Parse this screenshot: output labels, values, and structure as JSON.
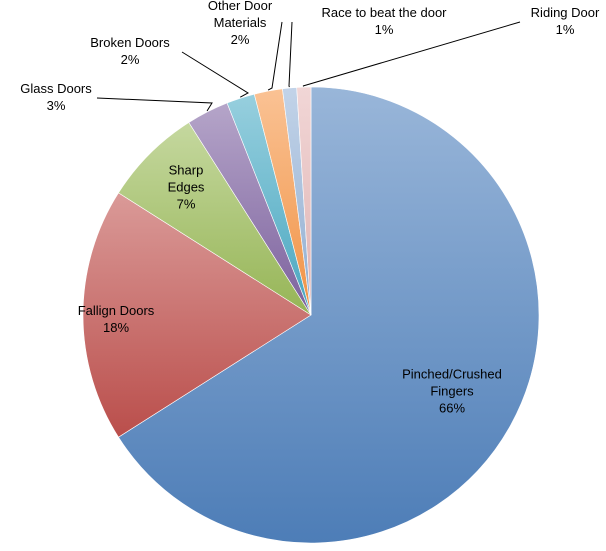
{
  "chart_data": {
    "type": "pie",
    "title": "",
    "start_angle": 0,
    "direction": "clockwise",
    "slices": [
      {
        "label": "Pinched/Crushed Fingers",
        "label_lines": [
          "Pinched/Crushed",
          "Fingers"
        ],
        "value": 66,
        "value_label": "66%",
        "color": "#4f81bd",
        "label_mode": "inside"
      },
      {
        "label": "Fallign Doors",
        "label_lines": [
          "Fallign Doors"
        ],
        "value": 18,
        "value_label": "18%",
        "color": "#c0504d",
        "label_mode": "inside"
      },
      {
        "label": "Sharp Edges",
        "label_lines": [
          "Sharp",
          "Edges"
        ],
        "value": 7,
        "value_label": "7%",
        "color": "#9bbb59",
        "label_mode": "inside"
      },
      {
        "label": "Glass Doors",
        "label_lines": [
          "Glass Doors"
        ],
        "value": 3,
        "value_label": "3%",
        "color": "#8064a2",
        "label_mode": "callout"
      },
      {
        "label": "Broken Doors",
        "label_lines": [
          "Broken Doors"
        ],
        "value": 2,
        "value_label": "2%",
        "color": "#4bacc6",
        "label_mode": "callout"
      },
      {
        "label": "Other Door Materials",
        "label_lines": [
          "Other Door",
          "Materials"
        ],
        "value": 2,
        "value_label": "2%",
        "color": "#f79646",
        "label_mode": "callout"
      },
      {
        "label": "Race to beat the door",
        "label_lines": [
          "Race to beat the door"
        ],
        "value": 1,
        "value_label": "1%",
        "color": "#95b3d7",
        "label_mode": "callout"
      },
      {
        "label": "Riding Door",
        "label_lines": [
          "Riding Door"
        ],
        "value": 1,
        "value_label": "1%",
        "color": "#e6b9b8",
        "label_mode": "callout"
      }
    ]
  }
}
